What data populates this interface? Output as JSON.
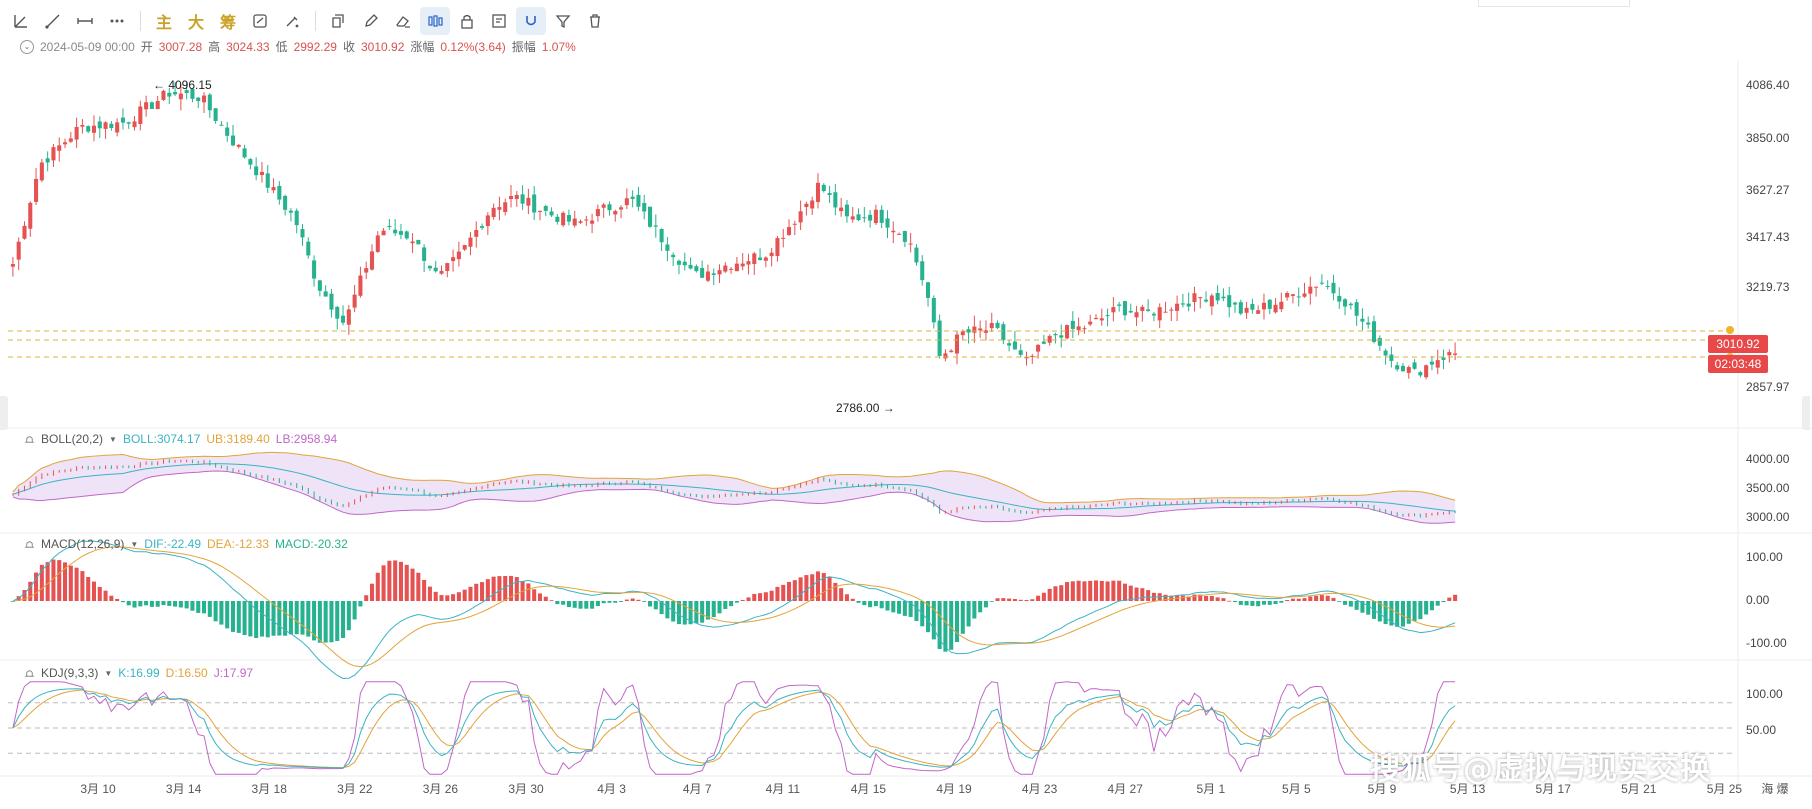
{
  "toolbar": {
    "items": [
      {
        "name": "trend-line-icon",
        "type": "icon"
      },
      {
        "name": "ray-line-icon",
        "type": "icon"
      },
      {
        "name": "horizontal-line-icon",
        "type": "icon"
      },
      {
        "name": "more-icon",
        "type": "icon"
      },
      {
        "name": "main-force-button",
        "type": "text",
        "label": "主"
      },
      {
        "name": "big-order-button",
        "type": "text",
        "label": "大"
      },
      {
        "name": "chip-button",
        "type": "text",
        "label": "筹"
      },
      {
        "name": "compare-icon",
        "type": "icon"
      },
      {
        "name": "brush-icon",
        "type": "icon"
      },
      {
        "name": "copy-icon",
        "type": "icon"
      },
      {
        "name": "pencil-icon",
        "type": "icon"
      },
      {
        "name": "eraser-icon",
        "type": "icon"
      },
      {
        "name": "candle-icon",
        "type": "icon",
        "active": true
      },
      {
        "name": "lock-icon",
        "type": "icon"
      },
      {
        "name": "edit-note-icon",
        "type": "icon"
      },
      {
        "name": "magnet-icon",
        "type": "icon",
        "active": true
      },
      {
        "name": "filter-icon",
        "type": "icon"
      },
      {
        "name": "trash-icon",
        "type": "icon"
      }
    ]
  },
  "ohlc_info": {
    "date": "2024-05-09 00:00",
    "open_label": "开",
    "open": "3007.28",
    "high_label": "高",
    "high": "3024.33",
    "low_label": "低",
    "low": "2992.29",
    "close_label": "收",
    "close": "3010.92",
    "change_label": "涨幅",
    "change": "0.12%(3.64)",
    "amp_label": "振幅",
    "amp": "1.07%"
  },
  "main_chart": {
    "y_ticks": [
      "4086.40",
      "3850.00",
      "3627.27",
      "3417.43",
      "3219.73",
      "2857.97"
    ],
    "high_annotation": "← 4096.15",
    "low_annotation": "2786.00 →",
    "price_tag": "3010.92",
    "countdown_tag": "02:03:48",
    "colors": {
      "up": "#e45252",
      "down": "#26b28f",
      "dashed": "#d8b437",
      "tag": "#e84848"
    }
  },
  "boll": {
    "name": "BOLL(20,2)",
    "boll_label": "BOLL:3074.17",
    "ub_label": "UB:3189.40",
    "lb_label": "LB:2958.94",
    "y_ticks": [
      "4000.00",
      "3500.00",
      "3000.00"
    ],
    "colors": {
      "boll": "#3bb3c3",
      "ub": "#e3a33a",
      "lb": "#c266c9",
      "band": "#eadcf5"
    }
  },
  "macd": {
    "name": "MACD(12,26,9)",
    "dif_label": "DIF:-22.49",
    "dea_label": "DEA:-12.33",
    "macd_label": "MACD:-20.32",
    "y_ticks": [
      "100.00",
      "0.00",
      "-100.00"
    ],
    "colors": {
      "dif": "#3bb3c3",
      "dea": "#e3a33a",
      "macd": "#26b28f"
    }
  },
  "kdj": {
    "name": "KDJ(9,3,3)",
    "k_label": "K:16.99",
    "d_label": "D:16.50",
    "j_label": "J:17.97",
    "y_ticks": [
      "100.00",
      "50.00"
    ],
    "colors": {
      "k": "#3bb3c3",
      "d": "#e3a33a",
      "j": "#c266c9"
    }
  },
  "x_axis": {
    "labels": [
      "3月 10",
      "3月 14",
      "3月 18",
      "3月 22",
      "3月 26",
      "3月 30",
      "4月 3",
      "4月 7",
      "4月 11",
      "4月 15",
      "4月 19",
      "4月 23",
      "4月 27",
      "5月 1",
      "5月 5",
      "5月 9",
      "5月 13",
      "5月 17",
      "5月 21",
      "5月 25"
    ],
    "right_label": "海 爆"
  },
  "watermark": "搜狐号@虚拟与现实交换"
}
